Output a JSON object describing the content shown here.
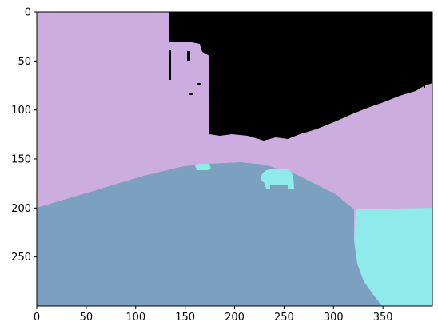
{
  "figure": {
    "x_ticks": [
      "0",
      "50",
      "100",
      "150",
      "200",
      "250",
      "300",
      "350"
    ],
    "y_ticks": [
      "0",
      "50",
      "100",
      "150",
      "200",
      "250"
    ],
    "x_range": [
      0,
      400
    ],
    "y_range": [
      0,
      300
    ],
    "y_axis_inverted": true
  },
  "segmentation": {
    "classes": [
      {
        "name": "sky",
        "color": "#000000"
      },
      {
        "name": "building",
        "color": "#cdacdf"
      },
      {
        "name": "road",
        "color": "#7ca0c0"
      },
      {
        "name": "vehicle",
        "color": "#8feaea"
      }
    ]
  }
}
